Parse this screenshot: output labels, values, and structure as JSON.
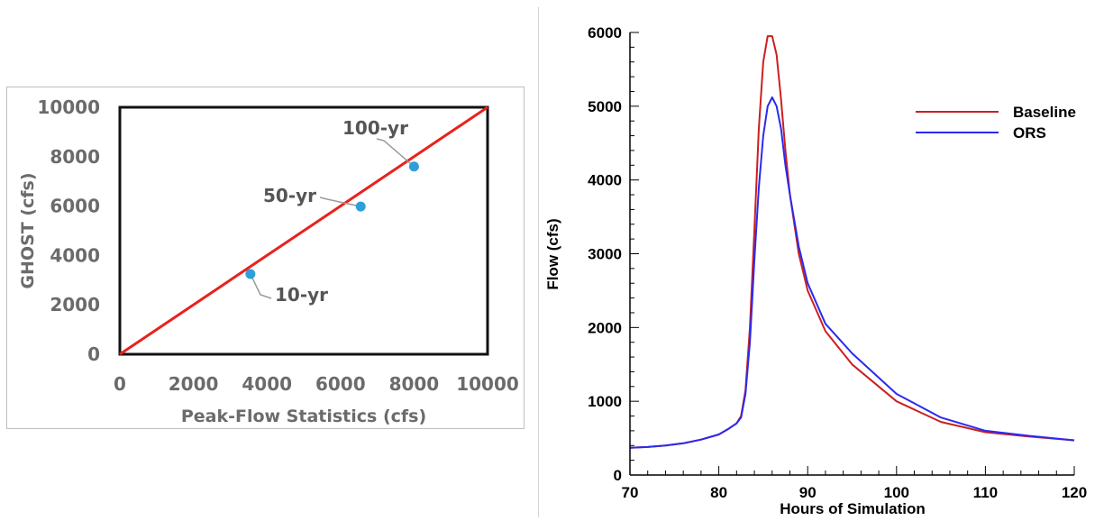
{
  "chart_data": [
    {
      "type": "scatter",
      "xlabel": "Peak-Flow Statistics (cfs)",
      "ylabel": "GHOST (cfs)",
      "xlim": [
        0,
        10000
      ],
      "ylim": [
        0,
        10000
      ],
      "xticks": [
        "0",
        "2000",
        "4000",
        "6000",
        "8000",
        "10000"
      ],
      "yticks": [
        "0",
        "2000",
        "4000",
        "6000",
        "8000",
        "10000"
      ],
      "reference_line": {
        "x": [
          0,
          10000
        ],
        "y": [
          0,
          10000
        ],
        "color": "#e8221c"
      },
      "points": [
        {
          "label": "10-yr",
          "x": 3550,
          "y": 3250
        },
        {
          "label": "50-yr",
          "x": 6550,
          "y": 5980
        },
        {
          "label": "100-yr",
          "x": 8000,
          "y": 7600
        }
      ],
      "point_color": "#2e9fd9",
      "grid": false
    },
    {
      "type": "line",
      "xlabel": "Hours of Simulation",
      "ylabel": "Flow (cfs)",
      "xlim": [
        70,
        120
      ],
      "ylim": [
        0,
        6000
      ],
      "xticks": [
        "70",
        "80",
        "90",
        "100",
        "110",
        "120"
      ],
      "yticks": [
        "0",
        "1000",
        "2000",
        "3000",
        "4000",
        "5000",
        "6000"
      ],
      "legend_position": "top-right",
      "grid": false,
      "series": [
        {
          "name": "Baseline",
          "color": "#cc1f1f",
          "x": [
            70,
            72,
            74,
            76,
            78,
            80,
            81,
            82,
            82.5,
            83,
            83.5,
            84,
            84.5,
            85,
            85.5,
            86,
            86.5,
            87,
            87.5,
            88,
            89,
            90,
            92,
            95,
            100,
            105,
            110,
            115,
            120
          ],
          "y": [
            370,
            380,
            400,
            430,
            480,
            550,
            620,
            700,
            800,
            1150,
            2000,
            3300,
            4700,
            5600,
            5950,
            5950,
            5700,
            5100,
            4400,
            3800,
            3000,
            2500,
            1950,
            1500,
            1000,
            720,
            580,
            520,
            470
          ]
        },
        {
          "name": "ORS",
          "color": "#2a2af0",
          "x": [
            70,
            72,
            74,
            76,
            78,
            80,
            81,
            82,
            82.5,
            83,
            83.5,
            84,
            84.5,
            85,
            85.5,
            86,
            86.5,
            87,
            87.5,
            88,
            89,
            90,
            92,
            95,
            100,
            105,
            110,
            115,
            120
          ],
          "y": [
            370,
            380,
            400,
            430,
            480,
            550,
            620,
            700,
            780,
            1100,
            1800,
            2900,
            3900,
            4600,
            5000,
            5120,
            5000,
            4700,
            4200,
            3800,
            3100,
            2600,
            2050,
            1650,
            1100,
            780,
            600,
            530,
            470
          ]
        }
      ]
    }
  ]
}
